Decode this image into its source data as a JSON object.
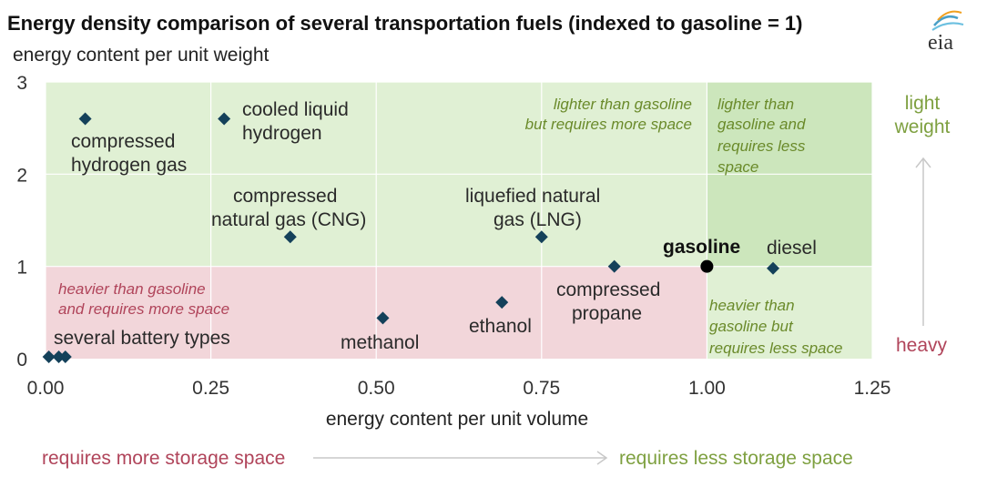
{
  "chart_data": {
    "type": "scatter",
    "title": "Energy density comparison of several transportation fuels (indexed to gasoline = 1)",
    "ylabel": "energy content per unit weight",
    "xlabel": "energy content per unit volume",
    "xlim": [
      0,
      1.25
    ],
    "ylim": [
      0,
      3
    ],
    "x_ticks": [
      "0.00",
      "0.25",
      "0.50",
      "0.75",
      "1.00",
      "1.25"
    ],
    "y_ticks": [
      "0",
      "1",
      "2",
      "3"
    ],
    "grid": true,
    "points": [
      {
        "label": "compressed hydrogen gas",
        "x": 0.06,
        "y": 2.6
      },
      {
        "label": "cooled liquid hydrogen",
        "x": 0.27,
        "y": 2.6
      },
      {
        "label": "compressed natural gas (CNG)",
        "x": 0.37,
        "y": 1.32
      },
      {
        "label": "liquefied natural gas (LNG)",
        "x": 0.75,
        "y": 1.32
      },
      {
        "label": "compressed propane",
        "x": 0.86,
        "y": 1.0
      },
      {
        "label": "gasoline",
        "x": 1.0,
        "y": 1.0,
        "marker": "circle"
      },
      {
        "label": "diesel",
        "x": 1.1,
        "y": 0.98
      },
      {
        "label": "ethanol",
        "x": 0.69,
        "y": 0.61
      },
      {
        "label": "methanol",
        "x": 0.51,
        "y": 0.44
      },
      {
        "label": "several battery types",
        "x": 0.005,
        "y": 0.02
      },
      {
        "label": "",
        "x": 0.02,
        "y": 0.02
      },
      {
        "label": "",
        "x": 0.03,
        "y": 0.02
      }
    ],
    "regions": {
      "top_left": "lighter than gasoline but requires more space",
      "top_right": "lighter than gasoline and requires less space",
      "bottom_left": "heavier than gasoline and requires more space",
      "bottom_right": "heavier than gasoline but requires less space"
    },
    "colors": {
      "green_region": "#e0f0d4",
      "dark_green_region": "#cce6bc",
      "red_region": "#f0d4d8",
      "marker": "#14415a",
      "gasoline_marker": "#000000"
    }
  },
  "text": {
    "title": "Energy density comparison of several transportation fuels (indexed to gasoline = 1)",
    "subtitle": "energy content per unit weight",
    "xlabel": "energy content per unit volume",
    "region_tl_1": "lighter than gasoline",
    "region_tl_2": "but requires more space",
    "region_tr_1": "lighter than",
    "region_tr_2": "gasoline and",
    "region_tr_3": "requires less",
    "region_tr_4": "space",
    "region_bl_1": "heavier than gasoline",
    "region_bl_2": "and requires more space",
    "region_br_1": "heavier than",
    "region_br_2": "gasoline but",
    "region_br_3": "requires less space",
    "light_1": "light",
    "light_2": "weight",
    "heavy": "heavy",
    "storage_more": "requires more storage space",
    "storage_less": "requires less storage space",
    "lbl_h2gas_1": "compressed",
    "lbl_h2gas_2": "hydrogen gas",
    "lbl_h2liq_1": "cooled liquid",
    "lbl_h2liq_2": "hydrogen",
    "lbl_cng_1": "compressed",
    "lbl_cng_2": "natural gas (CNG)",
    "lbl_lng_1": "liquefied natural",
    "lbl_lng_2": "gas (LNG)",
    "lbl_gasoline": "gasoline",
    "lbl_diesel": "diesel",
    "lbl_propane_1": "compressed",
    "lbl_propane_2": "propane",
    "lbl_ethanol": "ethanol",
    "lbl_methanol": "methanol",
    "lbl_battery": "several battery types",
    "logo": "eia"
  }
}
